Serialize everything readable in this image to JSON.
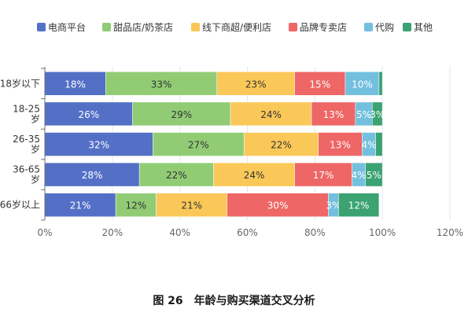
{
  "caption": "图 26　年龄与购买渠道交叉分析",
  "chart_data": {
    "type": "bar",
    "orientation": "horizontal",
    "stacked": true,
    "categories": [
      "18岁以下",
      "18-25岁",
      "26-35岁",
      "36-65岁",
      "66岁以上"
    ],
    "series": [
      {
        "name": "电商平台",
        "color": "#5470c6",
        "values": [
          18,
          26,
          32,
          28,
          21
        ]
      },
      {
        "name": "甜品店/奶茶店",
        "color": "#91cc75",
        "values": [
          33,
          29,
          27,
          22,
          12
        ]
      },
      {
        "name": "线下商超/便利店",
        "color": "#fac858",
        "values": [
          23,
          24,
          22,
          24,
          21
        ]
      },
      {
        "name": "品牌专卖店",
        "color": "#ee6666",
        "values": [
          15,
          13,
          13,
          17,
          30
        ]
      },
      {
        "name": "代购",
        "color": "#73c0de",
        "values": [
          10,
          5,
          4,
          4,
          3
        ]
      },
      {
        "name": "其他",
        "color": "#3ba272",
        "values": [
          1,
          3,
          2,
          5,
          12
        ]
      }
    ],
    "xlim": [
      0,
      120
    ],
    "xticks": [
      "0%",
      "20%",
      "40%",
      "60%",
      "80%",
      "100%",
      "120%"
    ],
    "xtick_values": [
      0,
      20,
      40,
      60,
      80,
      100,
      120
    ],
    "legend_position": "top",
    "grid": true
  }
}
